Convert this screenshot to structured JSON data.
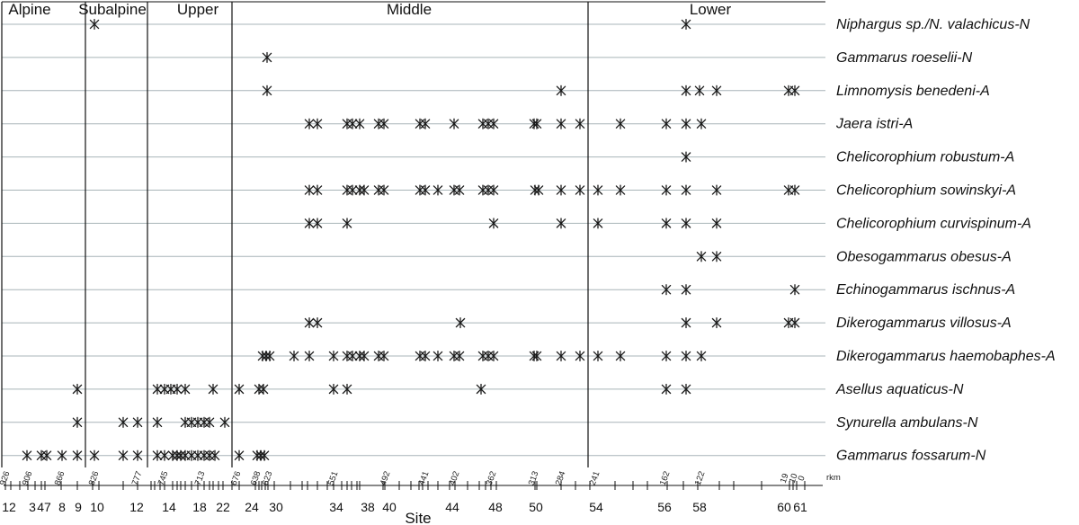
{
  "chart_data": {
    "type": "scatter",
    "marker": "asterisk",
    "xlabel": "Site",
    "rkm_axis_label": "rkm",
    "zones": [
      "Alpine",
      "Subalpine",
      "Upper",
      "Middle",
      "Lower"
    ],
    "rkm_tick_labels": [
      "926",
      "906",
      "866",
      "826",
      "777",
      "745",
      "713",
      "676",
      "638",
      "623",
      "551",
      "492",
      "441",
      "402",
      "362",
      "313",
      "284",
      "241",
      "162",
      "122",
      "19",
      "10",
      "0"
    ],
    "site_tick_labels": [
      "12",
      "3",
      "47",
      "8",
      "9",
      "10",
      "12",
      "14",
      "18",
      "22",
      "24",
      "30",
      "34",
      "38",
      "40",
      "44",
      "48",
      "50",
      "54",
      "56",
      "58",
      "60",
      "61"
    ],
    "species": [
      "Niphargus sp./N. valachicus-N",
      "Gammarus roeselii-N",
      "Limnomysis benedeni-A",
      "Jaera istri-A",
      "Chelicorophium robustum-A",
      "Chelicorophium sowinskyi-A",
      "Chelicorophium curvispinum-A",
      "Obesogammarus obesus-A",
      "Echinogammarus ischnus-A",
      "Dikerogammarus villosus-A",
      "Dikerogammarus haemobaphes-A",
      "Asellus aquaticus-N",
      "Synurella ambulans-N",
      "Gammarus fossarum-N"
    ]
  },
  "colors": {
    "line": "#111111",
    "grid": "#a8b4b8",
    "marker": "#1a1a1a"
  }
}
